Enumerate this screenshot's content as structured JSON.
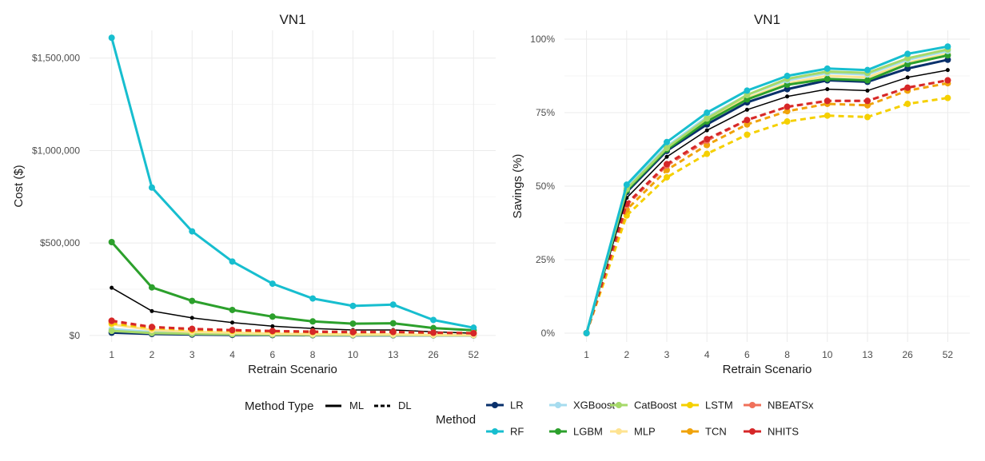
{
  "chart_data": [
    {
      "type": "line",
      "title": "VN1",
      "xlabel": "Retrain Scenario",
      "ylabel": "Cost ($)",
      "categories": [
        "1",
        "2",
        "3",
        "4",
        "6",
        "8",
        "10",
        "13",
        "26",
        "52"
      ],
      "ylim": [
        -35000,
        1650000
      ],
      "yticks": [
        0,
        500000,
        1000000,
        1500000
      ],
      "ytick_labels": [
        "$0",
        "$500,000",
        "$1,000,000",
        "$1,500,000"
      ],
      "grid": true,
      "series": [
        {
          "name": "LR",
          "type": "ML",
          "color": "#08306b",
          "width": 3,
          "dash": false,
          "points": true,
          "values": [
            15000,
            8000,
            5000,
            3000,
            2000,
            1500,
            1000,
            1000,
            800,
            600
          ]
        },
        {
          "name": "XGBoost",
          "type": "ML",
          "color": "#a6dcef",
          "width": 3,
          "dash": false,
          "points": true,
          "values": [
            35000,
            18000,
            12000,
            9000,
            6000,
            4000,
            3000,
            3000,
            2000,
            1500
          ]
        },
        {
          "name": "CatBoost",
          "type": "ML",
          "color": "#a6d96a",
          "width": 3,
          "dash": false,
          "points": true,
          "values": [
            25000,
            13000,
            9000,
            6500,
            4500,
            3000,
            2500,
            2500,
            1500,
            1000
          ]
        },
        {
          "name": "MLP",
          "type": "ML",
          "color": "#fee391",
          "width": 3,
          "dash": false,
          "points": true,
          "values": [
            60000,
            30000,
            20000,
            15000,
            10000,
            7500,
            6000,
            6000,
            3500,
            2500
          ]
        },
        {
          "name": "ML black",
          "type": "ML",
          "color": "#000000",
          "width": 1.5,
          "dash": false,
          "points": true,
          "values": [
            258000,
            132000,
            95000,
            70000,
            50000,
            38000,
            30000,
            30000,
            20000,
            12000
          ]
        },
        {
          "name": "LGBM",
          "type": "ML",
          "color": "#2ca02c",
          "width": 3,
          "dash": false,
          "points": true,
          "values": [
            505000,
            260000,
            187000,
            138000,
            102000,
            76000,
            64000,
            66000,
            40000,
            28000
          ]
        },
        {
          "name": "RF",
          "type": "ML",
          "color": "#17becf",
          "width": 3,
          "dash": false,
          "points": true,
          "values": [
            1610000,
            800000,
            563000,
            400000,
            280000,
            200000,
            160000,
            167000,
            84000,
            42000
          ]
        },
        {
          "name": "LSTM",
          "type": "DL",
          "color": "#f5d000",
          "width": 3,
          "dash": true,
          "points": true,
          "values": [
            65000,
            40000,
            30000,
            25000,
            21000,
            18000,
            17000,
            18000,
            14000,
            13000
          ]
        },
        {
          "name": "TCN",
          "type": "DL",
          "color": "#f0a30a",
          "width": 3,
          "dash": true,
          "points": true,
          "values": [
            75000,
            45000,
            35000,
            28000,
            24000,
            21000,
            19000,
            20000,
            15000,
            13000
          ]
        },
        {
          "name": "NBEATSx",
          "type": "DL",
          "color": "#f0705a",
          "width": 3,
          "dash": true,
          "points": true,
          "values": [
            78000,
            46000,
            35000,
            29000,
            24000,
            21000,
            19000,
            20000,
            15000,
            12000
          ]
        },
        {
          "name": "NHITS",
          "type": "DL",
          "color": "#d62728",
          "width": 3,
          "dash": true,
          "points": true,
          "values": [
            80000,
            46000,
            36000,
            29000,
            24000,
            20000,
            18000,
            19000,
            15000,
            12000
          ]
        }
      ]
    },
    {
      "type": "line",
      "title": "VN1",
      "xlabel": "Retrain Scenario",
      "ylabel": "Savings (%)",
      "categories": [
        "1",
        "2",
        "3",
        "4",
        "6",
        "8",
        "10",
        "13",
        "26",
        "52"
      ],
      "ylim": [
        -3,
        103
      ],
      "yticks": [
        0,
        25,
        50,
        75,
        100
      ],
      "ytick_labels": [
        "0%",
        "25%",
        "50%",
        "75%",
        "100%"
      ],
      "grid": true,
      "series": [
        {
          "name": "LSTM",
          "type": "DL",
          "color": "#f5d000",
          "width": 3,
          "dash": true,
          "points": true,
          "values": [
            0,
            40,
            53,
            61,
            67.5,
            72,
            74,
            73.5,
            78,
            80
          ]
        },
        {
          "name": "TCN",
          "type": "DL",
          "color": "#f0a30a",
          "width": 3,
          "dash": true,
          "points": true,
          "values": [
            0,
            42,
            55.5,
            64,
            71,
            75.5,
            78,
            77.5,
            82.5,
            85
          ]
        },
        {
          "name": "NBEATSx",
          "type": "DL",
          "color": "#f0705a",
          "width": 3,
          "dash": true,
          "points": true,
          "values": [
            0,
            43.5,
            57,
            65.5,
            72.5,
            77,
            79,
            79,
            83.5,
            86
          ]
        },
        {
          "name": "NHITS",
          "type": "DL",
          "color": "#d62728",
          "width": 3,
          "dash": true,
          "points": true,
          "values": [
            0,
            44,
            57.5,
            66,
            72.5,
            77,
            79,
            79,
            83.5,
            86
          ]
        },
        {
          "name": "ML black",
          "type": "ML",
          "color": "#000000",
          "width": 1.5,
          "dash": false,
          "points": true,
          "values": [
            0,
            46,
            60,
            69,
            76,
            80.5,
            83,
            82.5,
            87,
            89.5
          ]
        },
        {
          "name": "LR",
          "type": "ML",
          "color": "#08306b",
          "width": 3,
          "dash": false,
          "points": true,
          "values": [
            0,
            48,
            62,
            71,
            78.5,
            83,
            86,
            85.5,
            90,
            93
          ]
        },
        {
          "name": "MLP",
          "type": "ML",
          "color": "#fee391",
          "width": 3,
          "dash": false,
          "points": true,
          "values": [
            0,
            49,
            63,
            72.5,
            80,
            85,
            87.5,
            87,
            92,
            95
          ]
        },
        {
          "name": "LGBM",
          "type": "ML",
          "color": "#2ca02c",
          "width": 3,
          "dash": false,
          "points": true,
          "values": [
            0,
            48.5,
            62.5,
            72,
            79.5,
            84.5,
            86.5,
            86,
            91.5,
            94.5
          ]
        },
        {
          "name": "XGBoost",
          "type": "ML",
          "color": "#a6dcef",
          "width": 3,
          "dash": false,
          "points": true,
          "values": [
            0,
            49.5,
            63.5,
            73.5,
            81,
            86,
            88.5,
            88,
            93,
            96
          ]
        },
        {
          "name": "CatBoost",
          "type": "ML",
          "color": "#a6d96a",
          "width": 3,
          "dash": false,
          "points": true,
          "values": [
            0,
            49,
            63,
            73,
            81,
            86.5,
            89,
            88.5,
            93.5,
            96.5
          ]
        },
        {
          "name": "RF",
          "type": "ML",
          "color": "#17becf",
          "width": 3,
          "dash": false,
          "points": true,
          "values": [
            0,
            50.5,
            65,
            75,
            82.5,
            87.5,
            90,
            89.5,
            95,
            97.5
          ]
        }
      ]
    }
  ],
  "legend": {
    "type_title": "Method Type",
    "type_items": [
      {
        "label": "ML",
        "dash": false
      },
      {
        "label": "DL",
        "dash": true
      }
    ],
    "method_title": "Method",
    "method_items": [
      {
        "label": "LR",
        "color": "#08306b"
      },
      {
        "label": "XGBoost",
        "color": "#a6dcef"
      },
      {
        "label": "CatBoost",
        "color": "#a6d96a"
      },
      {
        "label": "LSTM",
        "color": "#f5d000"
      },
      {
        "label": "NBEATSx",
        "color": "#f0705a"
      },
      {
        "label": "RF",
        "color": "#17becf"
      },
      {
        "label": "LGBM",
        "color": "#2ca02c"
      },
      {
        "label": "MLP",
        "color": "#fee391"
      },
      {
        "label": "TCN",
        "color": "#f0a30a"
      },
      {
        "label": "NHITS",
        "color": "#d62728"
      }
    ]
  }
}
